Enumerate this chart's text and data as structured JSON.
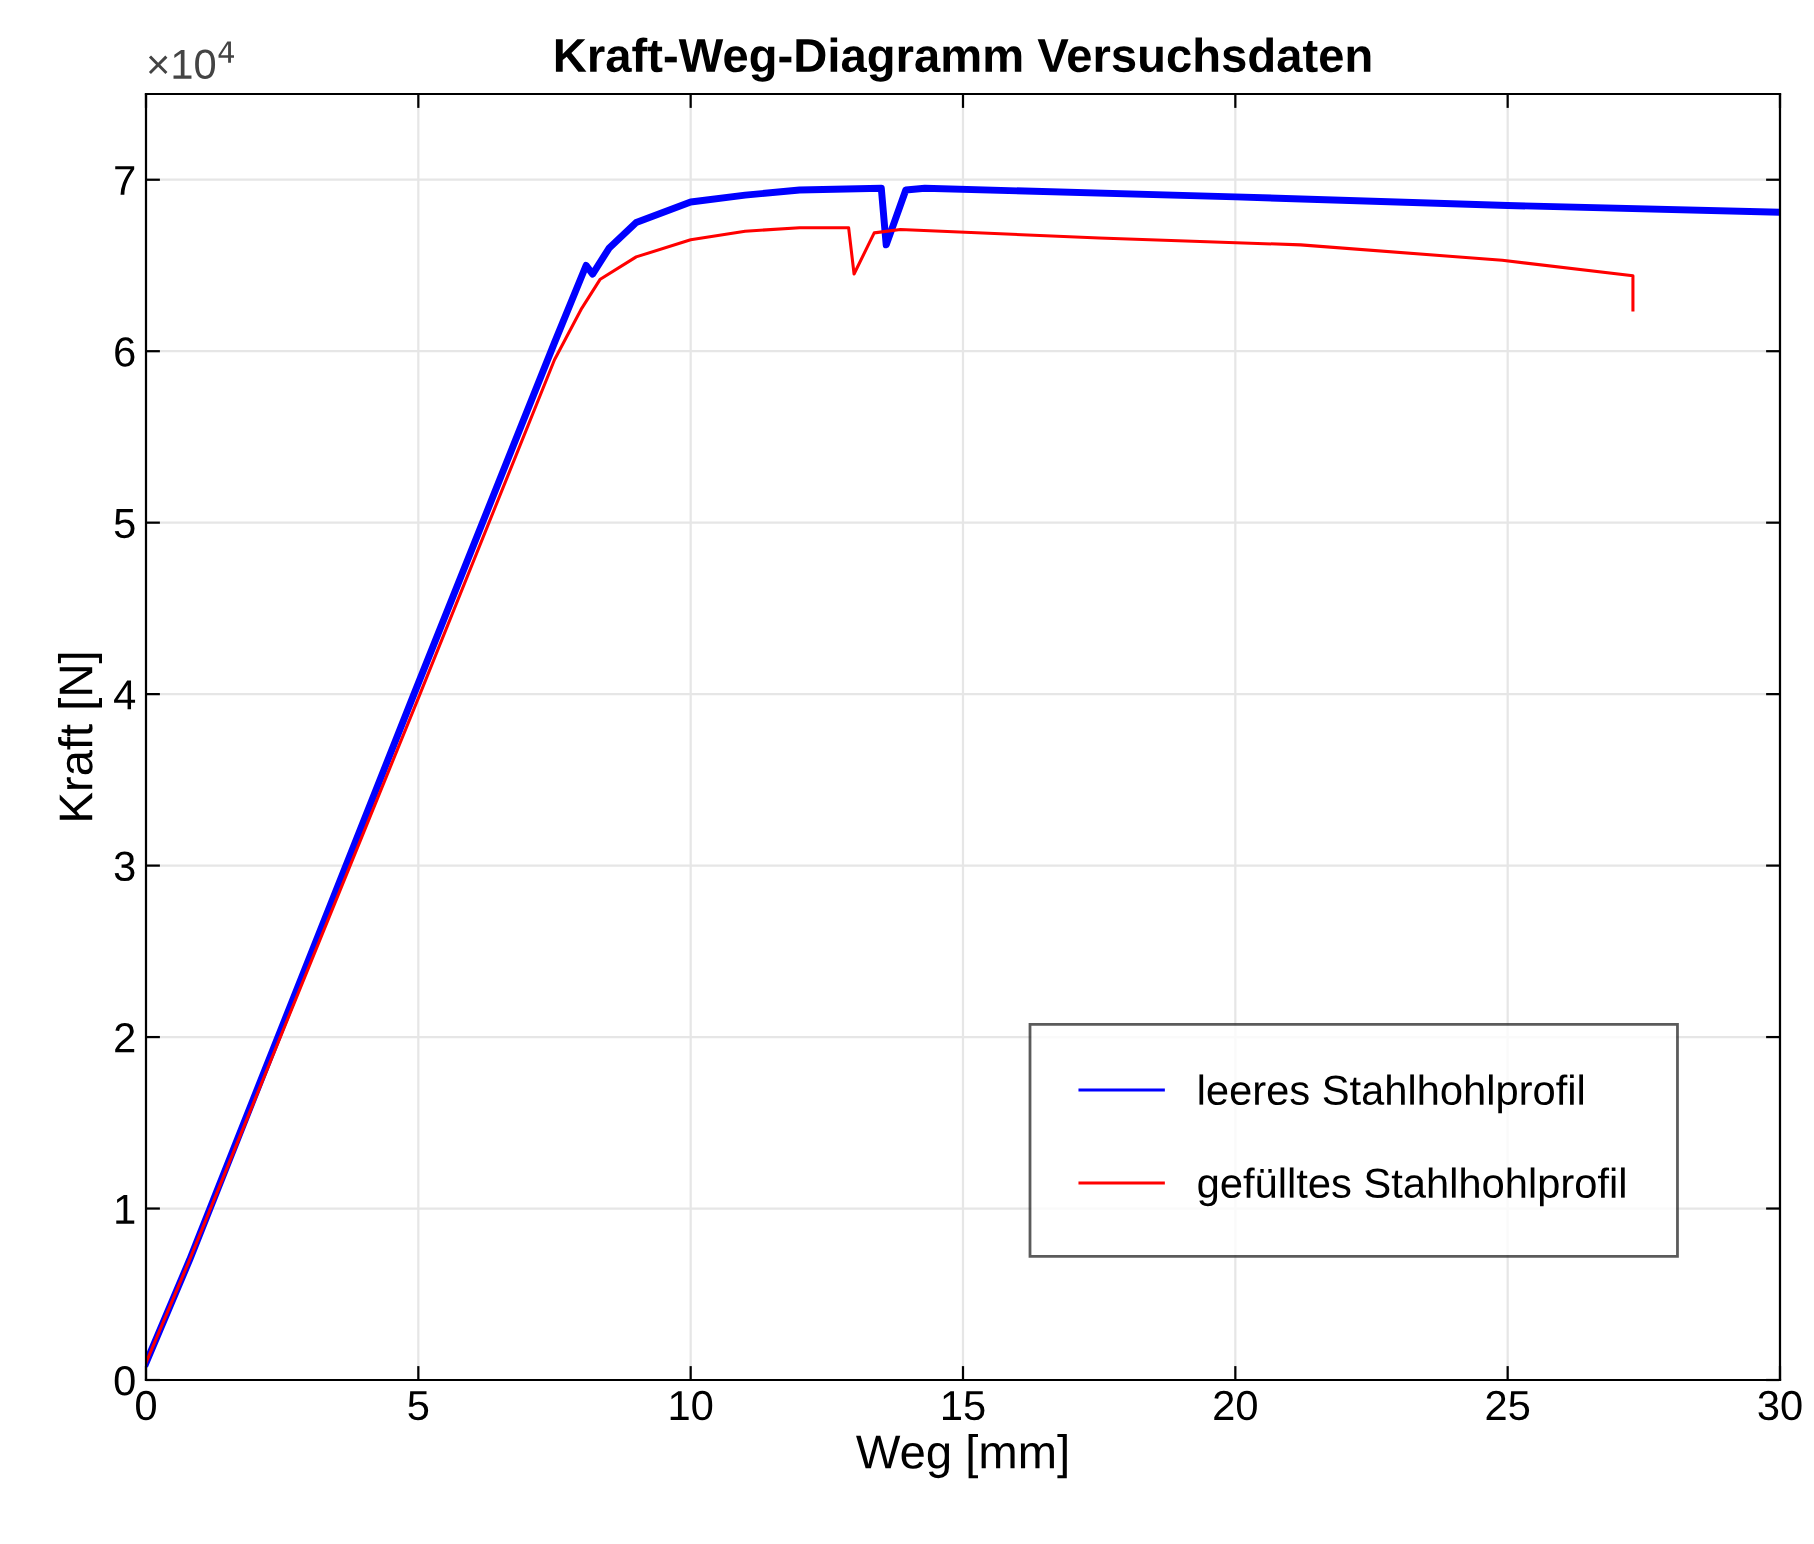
{
  "chart_data": {
    "type": "line",
    "title": "Kraft-Weg-Diagramm Versuchsdaten",
    "xlabel": "Weg [mm]",
    "ylabel": "Kraft [N]",
    "annotations": [
      "×10$^{4}$"
    ],
    "xlim": [
      0,
      30
    ],
    "xticks": [
      0,
      5,
      10,
      15,
      20,
      25,
      30
    ],
    "ylim": [
      0,
      7.5
    ],
    "yticks": [
      0,
      1,
      2,
      3,
      4,
      5,
      6,
      7
    ],
    "grid": true,
    "legend": "bottom right",
    "marker": "none",
    "line_style": "solid",
    "series": [
      {
        "name": "leeres Stahlhohlprofil",
        "color": "#0000ff",
        "x": [
          0,
          0.8,
          4.92,
          7.5,
          8.08,
          8.2,
          8.5,
          9,
          10,
          11,
          12,
          13.5,
          13.59,
          13.95,
          14.3,
          20,
          25,
          30
        ],
        "values": [
          0.1,
          0.7,
          4.0,
          6.05,
          6.5,
          6.45,
          6.6,
          6.75,
          6.87,
          6.91,
          6.94,
          6.95,
          6.62,
          6.94,
          6.95,
          6.9,
          6.85,
          6.81
        ]
      },
      {
        "name": "gefülltes Stahlhohlprofil",
        "color": "#ff0000",
        "x": [
          0,
          0.8,
          5.03,
          7.5,
          8,
          8.34,
          9,
          10,
          11,
          12,
          12.9,
          13.0,
          13.37,
          13.85,
          17.5,
          21.2,
          24.9,
          27.3,
          27.3
        ],
        "values": [
          0.1,
          0.7,
          4.0,
          5.95,
          6.25,
          6.42,
          6.55,
          6.65,
          6.7,
          6.72,
          6.72,
          6.45,
          6.69,
          6.71,
          6.66,
          6.62,
          6.53,
          6.44,
          6.24
        ]
      }
    ]
  }
}
